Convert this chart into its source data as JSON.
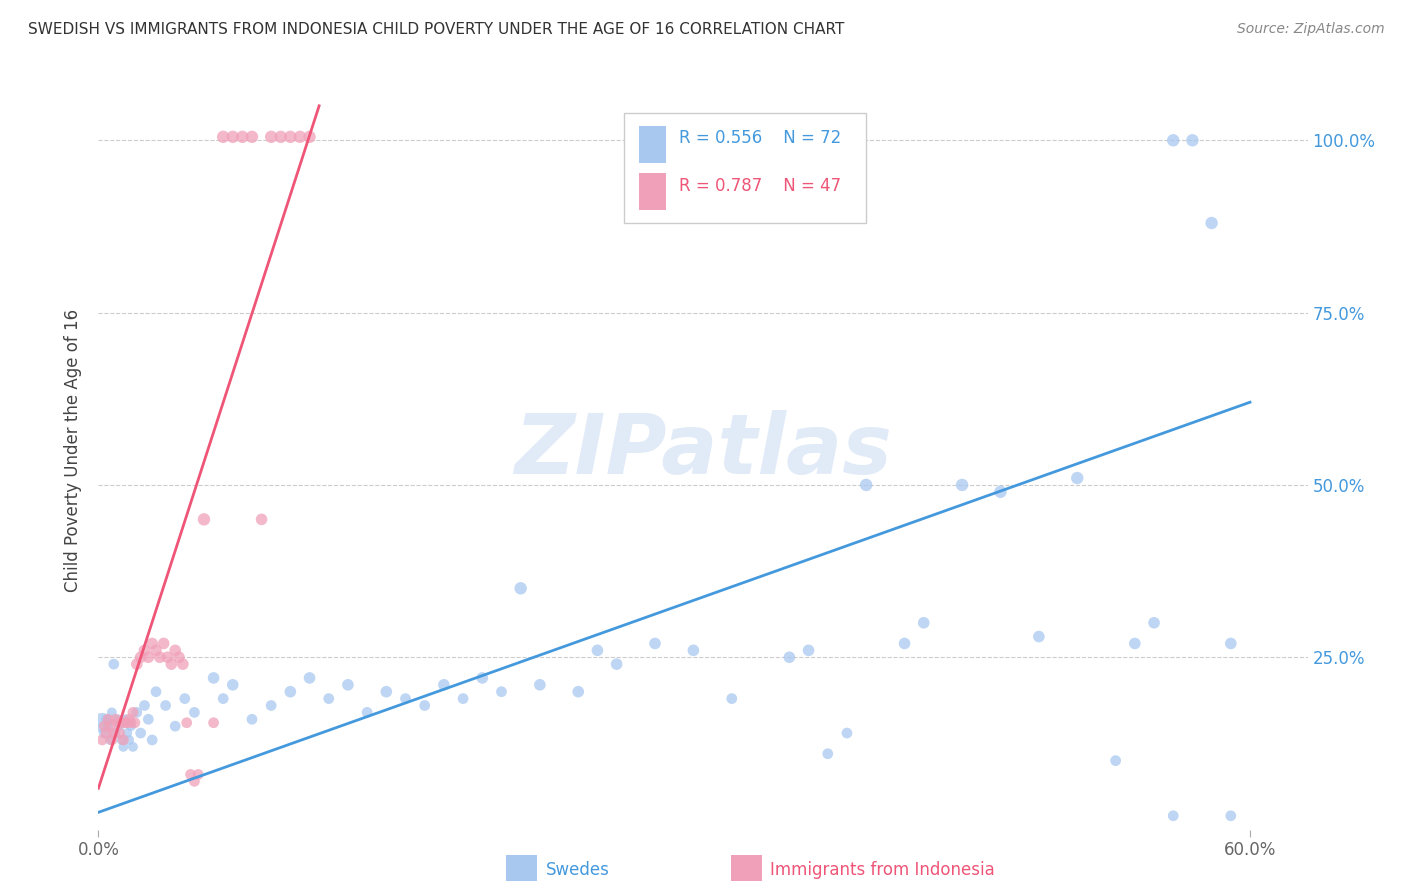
{
  "title": "SWEDISH VS IMMIGRANTS FROM INDONESIA CHILD POVERTY UNDER THE AGE OF 16 CORRELATION CHART",
  "source": "Source: ZipAtlas.com",
  "ylabel": "Child Poverty Under the Age of 16",
  "xlim": [
    0.0,
    0.63
  ],
  "ylim": [
    0.0,
    1.1
  ],
  "yticks": [
    0.25,
    0.5,
    0.75,
    1.0
  ],
  "ytick_labels": [
    "25.0%",
    "50.0%",
    "75.0%",
    "100.0%"
  ],
  "xticks": [
    0.0,
    0.6
  ],
  "xtick_labels": [
    "0.0%",
    "60.0%"
  ],
  "blue_color": "#a8c8f0",
  "pink_color": "#f0a0b8",
  "blue_line_color": "#4499dd",
  "pink_line_color": "#ee5577",
  "legend_blue_R": "R = 0.556",
  "legend_blue_N": "N = 72",
  "legend_pink_R": "R = 0.787",
  "legend_pink_N": "N = 47",
  "watermark": "ZIPatlas",
  "swedes_label": "Swedes",
  "indonesia_label": "Immigrants from Indonesia",
  "blue_scatter_x": [
    0.002,
    0.003,
    0.004,
    0.005,
    0.006,
    0.007,
    0.008,
    0.009,
    0.01,
    0.011,
    0.012,
    0.013,
    0.014,
    0.015,
    0.016,
    0.017,
    0.018,
    0.02,
    0.022,
    0.024,
    0.026,
    0.028,
    0.03,
    0.035,
    0.04,
    0.045,
    0.05,
    0.06,
    0.065,
    0.07,
    0.08,
    0.09,
    0.1,
    0.11,
    0.12,
    0.13,
    0.14,
    0.15,
    0.16,
    0.17,
    0.18,
    0.19,
    0.2,
    0.21,
    0.22,
    0.23,
    0.25,
    0.26,
    0.27,
    0.29,
    0.31,
    0.33,
    0.36,
    0.37,
    0.38,
    0.39,
    0.4,
    0.42,
    0.43,
    0.45,
    0.47,
    0.49,
    0.51,
    0.53,
    0.54,
    0.55,
    0.56,
    0.57,
    0.58,
    0.59,
    0.56,
    0.59
  ],
  "blue_scatter_y": [
    0.155,
    0.14,
    0.16,
    0.15,
    0.13,
    0.17,
    0.24,
    0.14,
    0.16,
    0.15,
    0.13,
    0.12,
    0.16,
    0.14,
    0.13,
    0.15,
    0.12,
    0.17,
    0.14,
    0.18,
    0.16,
    0.13,
    0.2,
    0.18,
    0.15,
    0.19,
    0.17,
    0.22,
    0.19,
    0.21,
    0.16,
    0.18,
    0.2,
    0.22,
    0.19,
    0.21,
    0.17,
    0.2,
    0.19,
    0.18,
    0.21,
    0.19,
    0.22,
    0.2,
    0.35,
    0.21,
    0.2,
    0.26,
    0.24,
    0.27,
    0.26,
    0.19,
    0.25,
    0.26,
    0.11,
    0.14,
    0.5,
    0.27,
    0.3,
    0.5,
    0.49,
    0.28,
    0.51,
    0.1,
    0.27,
    0.3,
    1.0,
    1.0,
    0.88,
    0.27,
    0.02,
    0.02
  ],
  "blue_scatter_size": [
    200,
    60,
    50,
    50,
    50,
    50,
    60,
    50,
    50,
    50,
    50,
    50,
    50,
    50,
    50,
    50,
    50,
    60,
    60,
    60,
    60,
    60,
    60,
    60,
    60,
    60,
    60,
    70,
    60,
    70,
    60,
    60,
    70,
    70,
    60,
    70,
    60,
    70,
    60,
    60,
    70,
    60,
    70,
    60,
    80,
    70,
    70,
    70,
    70,
    70,
    70,
    60,
    70,
    70,
    60,
    60,
    80,
    70,
    70,
    80,
    80,
    70,
    80,
    60,
    70,
    70,
    80,
    80,
    80,
    70,
    60,
    60
  ],
  "blue_line_x": [
    0.0,
    0.6
  ],
  "blue_line_y": [
    0.025,
    0.62
  ],
  "pink_scatter_x": [
    0.002,
    0.003,
    0.004,
    0.005,
    0.006,
    0.007,
    0.008,
    0.009,
    0.01,
    0.011,
    0.012,
    0.013,
    0.014,
    0.015,
    0.016,
    0.017,
    0.018,
    0.019,
    0.02,
    0.022,
    0.024,
    0.026,
    0.028,
    0.03,
    0.032,
    0.034,
    0.036,
    0.038,
    0.04,
    0.042,
    0.044,
    0.046,
    0.048,
    0.05,
    0.052,
    0.055,
    0.06,
    0.065,
    0.07,
    0.075,
    0.08,
    0.085,
    0.09,
    0.095,
    0.1,
    0.105,
    0.11
  ],
  "pink_scatter_y": [
    0.13,
    0.15,
    0.14,
    0.16,
    0.15,
    0.13,
    0.14,
    0.16,
    0.155,
    0.14,
    0.155,
    0.13,
    0.155,
    0.155,
    0.16,
    0.155,
    0.17,
    0.155,
    0.24,
    0.25,
    0.26,
    0.25,
    0.27,
    0.26,
    0.25,
    0.27,
    0.25,
    0.24,
    0.26,
    0.25,
    0.24,
    0.155,
    0.08,
    0.07,
    0.08,
    0.45,
    0.155,
    1.005,
    1.005,
    1.005,
    1.005,
    0.45,
    1.005,
    1.005,
    1.005,
    1.005,
    1.005
  ],
  "pink_scatter_size": [
    60,
    60,
    60,
    60,
    60,
    60,
    60,
    60,
    60,
    60,
    60,
    60,
    60,
    60,
    60,
    60,
    60,
    60,
    70,
    70,
    70,
    70,
    70,
    70,
    70,
    70,
    70,
    70,
    70,
    70,
    70,
    60,
    60,
    60,
    60,
    80,
    60,
    80,
    80,
    80,
    80,
    70,
    80,
    80,
    80,
    80,
    80
  ],
  "pink_line_x": [
    0.0,
    0.115
  ],
  "pink_line_y": [
    0.06,
    1.05
  ]
}
